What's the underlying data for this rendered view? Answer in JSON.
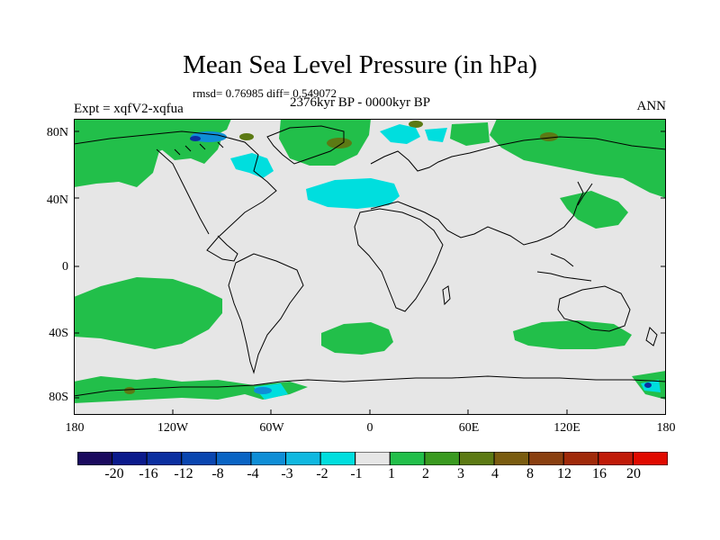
{
  "title": "Mean Sea Level Pressure (in hPa)",
  "stats": "rmsd= 0.76985 diff= 0.549072",
  "experiment": "Expt = xqfV2-xqfua",
  "period": "2376kyr BP - 0000kyr BP",
  "season": "ANN",
  "lat_labels": [
    "80N",
    "40N",
    "0",
    "40S",
    "80S"
  ],
  "lon_labels": [
    "180",
    "120W",
    "60W",
    "0",
    "60E",
    "120E",
    "180"
  ],
  "colorbar": {
    "labels": [
      "-20",
      "-16",
      "-12",
      "-8",
      "-4",
      "-3",
      "-2",
      "-1",
      "1",
      "2",
      "3",
      "4",
      "8",
      "12",
      "16",
      "20"
    ],
    "colors": [
      "#1a0a5e",
      "#0b1a8c",
      "#0b2fa0",
      "#0a46b0",
      "#0a64c4",
      "#0f8ed6",
      "#10b8e0",
      "#00dede",
      "#e6e6e6",
      "#22bf4a",
      "#3a9a20",
      "#5c7a14",
      "#7a5c10",
      "#8a4010",
      "#a02a0a",
      "#c01a08",
      "#e00a00"
    ]
  },
  "map_colors": {
    "ocean_bg": "#e6e6e6",
    "positive_small": "#22bf4a",
    "positive_medium": "#5c7a14",
    "negative_small": "#00dede",
    "negative_medium": "#0f8ed6",
    "negative_strong": "#0b2fa0",
    "coast": "#000000"
  }
}
